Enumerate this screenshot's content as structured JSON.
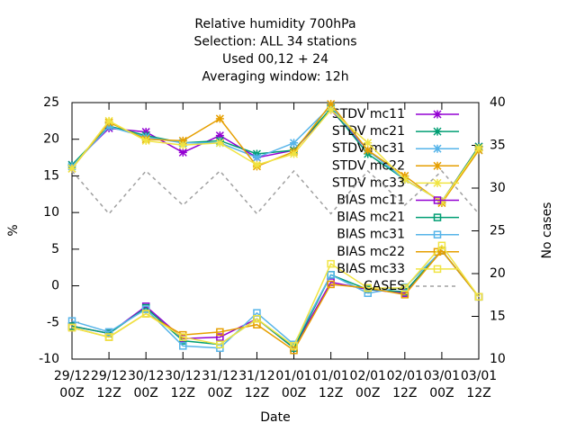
{
  "chart_data": {
    "type": "line",
    "title": [
      "Relative humidity 700hPa",
      "Selection: ALL      34 stations",
      "Used  00,12  + 24",
      "Averaging window: 12h"
    ],
    "xlabel": "Date",
    "ylabel": "%",
    "y2label": "No cases",
    "categories": [
      [
        "29/12",
        "00Z"
      ],
      [
        "29/12",
        "12Z"
      ],
      [
        "30/12",
        "00Z"
      ],
      [
        "30/12",
        "12Z"
      ],
      [
        "31/12",
        "00Z"
      ],
      [
        "31/12",
        "12Z"
      ],
      [
        "01/01",
        "00Z"
      ],
      [
        "01/01",
        "12Z"
      ],
      [
        "02/01",
        "00Z"
      ],
      [
        "02/01",
        "12Z"
      ],
      [
        "03/01",
        "00Z"
      ],
      [
        "03/01",
        "12Z"
      ]
    ],
    "ylim": [
      -10,
      25
    ],
    "yticks": [
      -10,
      -5,
      0,
      5,
      10,
      15,
      20,
      25
    ],
    "y2lim": [
      10,
      40
    ],
    "y2ticks": [
      10,
      15,
      20,
      25,
      30,
      35,
      40
    ],
    "series": [
      {
        "name": "STDV mc11",
        "color": "#9400d3",
        "marker": "star",
        "values": [
          16.5,
          21.5,
          21,
          18.2,
          20.5,
          17.5,
          18.5,
          24,
          18.5,
          14.5,
          11.5,
          19
        ]
      },
      {
        "name": "STDV mc21",
        "color": "#009e73",
        "marker": "star",
        "values": [
          16.5,
          21.8,
          20.5,
          19.5,
          19.8,
          18,
          18.5,
          24.2,
          18,
          14.5,
          11.5,
          19
        ]
      },
      {
        "name": "STDV mc31",
        "color": "#56b4e9",
        "marker": "star",
        "values": [
          16.3,
          21.7,
          20.3,
          19.5,
          19.5,
          17.5,
          19.5,
          24.5,
          18.5,
          14.5,
          11.5,
          18.5
        ]
      },
      {
        "name": "STDV mc22",
        "color": "#e69f00",
        "marker": "star",
        "values": [
          16,
          22.3,
          20,
          19.8,
          22.8,
          16.3,
          18.3,
          24.8,
          18.5,
          15,
          11.3,
          18.5
        ]
      },
      {
        "name": "STDV mc33",
        "color": "#f0e442",
        "marker": "star",
        "values": [
          16,
          22.5,
          19.8,
          19.2,
          19.5,
          16.5,
          18,
          24,
          19.5,
          14.5,
          11.5,
          18.8
        ]
      },
      {
        "name": "BIAS mc11",
        "color": "#9400d3",
        "marker": "square",
        "values": [
          -5.5,
          -6.5,
          -2.8,
          -7.2,
          -7,
          -4.5,
          -8.5,
          0.5,
          -0.5,
          -1,
          4.8,
          -1.5
        ]
      },
      {
        "name": "BIAS mc21",
        "color": "#009e73",
        "marker": "square",
        "values": [
          -5.5,
          -6.5,
          -3,
          -7.5,
          -8,
          -4.5,
          -8.5,
          1.5,
          -0.5,
          -0.8,
          4.8,
          -1.5
        ]
      },
      {
        "name": "BIAS mc31",
        "color": "#56b4e9",
        "marker": "square",
        "values": [
          -4.8,
          -6.3,
          -3.2,
          -8.2,
          -8.5,
          -3.7,
          -8,
          1.5,
          -1,
          -0.2,
          4.8,
          -1.5
        ]
      },
      {
        "name": "BIAS mc22",
        "color": "#e69f00",
        "marker": "square",
        "values": [
          -5.7,
          -7,
          -3.8,
          -6.7,
          -6.3,
          -5.3,
          -8.8,
          0.2,
          -0.3,
          -1.2,
          4.8,
          -1.5
        ]
      },
      {
        "name": "BIAS mc33",
        "color": "#f0e442",
        "marker": "square",
        "values": [
          -5.7,
          -7,
          -3.8,
          -7,
          -8,
          -4.5,
          -8.2,
          3,
          -0.3,
          -0.3,
          5.5,
          -1.5
        ]
      },
      {
        "name": "CASES",
        "color": "#a0a0a0",
        "marker": "none",
        "dashed": true,
        "axis": "y2",
        "values": [
          32,
          27,
          32,
          28,
          32,
          27,
          32,
          27,
          32,
          28,
          32,
          27
        ]
      }
    ]
  }
}
